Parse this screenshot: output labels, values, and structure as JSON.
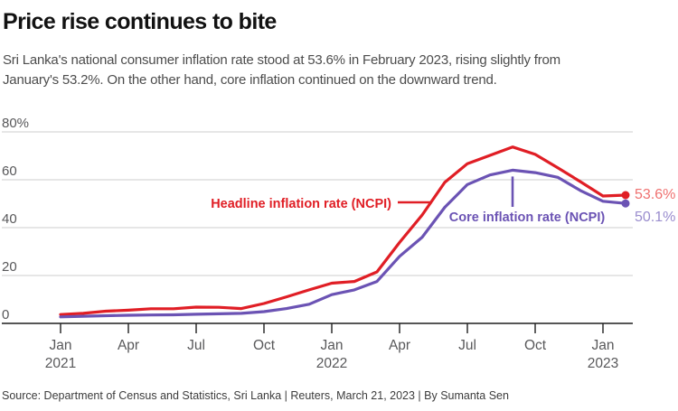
{
  "header": {
    "title": "Price rise continues to bite",
    "subtitle_line1": "Sri Lanka's national consumer inflation rate stood at 53.6% in February 2023, rising slightly from",
    "subtitle_line2": "January's 53.2%. On the other hand, core inflation continued on the downward trend."
  },
  "source": "Source: Department of Census and Statistics, Sri Lanka | Reuters, March 21, 2023 | By Sumanta Sen",
  "colors": {
    "headline_line": "#e01e25",
    "core_line": "#6b53b4",
    "headline_end_label": "#ef7170",
    "core_end_label": "#9a8dce",
    "gridline": "#cccccc",
    "axis": "#1f1f1f",
    "axis_text": "#58585a"
  },
  "chart_data": {
    "type": "line",
    "title": "Price rise continues to bite",
    "x": [
      "Jan 2021",
      "Feb 2021",
      "Mar 2021",
      "Apr 2021",
      "May 2021",
      "Jun 2021",
      "Jul 2021",
      "Aug 2021",
      "Sep 2021",
      "Oct 2021",
      "Nov 2021",
      "Dec 2021",
      "Jan 2022",
      "Feb 2022",
      "Mar 2022",
      "Apr 2022",
      "May 2022",
      "Jun 2022",
      "Jul 2022",
      "Aug 2022",
      "Sep 2022",
      "Oct 2022",
      "Nov 2022",
      "Dec 2022",
      "Jan 2023",
      "Feb 2023"
    ],
    "series": [
      {
        "name": "Headline inflation rate (NCPI)",
        "color_key": "headline_line",
        "end_label": "53.6%",
        "end_label_color_key": "headline_end_label",
        "values": [
          3.7,
          4.2,
          5.1,
          5.5,
          6.1,
          6.1,
          6.8,
          6.7,
          6.2,
          8.3,
          11.1,
          14.0,
          16.8,
          17.5,
          21.5,
          33.8,
          45.3,
          58.9,
          66.7,
          70.2,
          73.7,
          70.6,
          65.0,
          59.2,
          53.2,
          53.6
        ]
      },
      {
        "name": "Core inflation rate (NCPI)",
        "color_key": "core_line",
        "end_label": "50.1%",
        "end_label_color_key": "core_end_label",
        "values": [
          2.7,
          3.0,
          3.2,
          3.4,
          3.5,
          3.6,
          3.8,
          4.0,
          4.2,
          4.9,
          6.2,
          8.0,
          12.0,
          14.0,
          17.5,
          28.0,
          36.0,
          48.5,
          58.0,
          62.0,
          64.0,
          63.0,
          61.0,
          55.5,
          51.0,
          50.1
        ]
      }
    ],
    "ylim": [
      0,
      80
    ],
    "grid": "horizontal",
    "legend_position": "annotated-on-chart",
    "y_ticks": [
      {
        "label": "80%",
        "v": 80
      },
      {
        "label": "60",
        "v": 60
      },
      {
        "label": "40",
        "v": 40
      },
      {
        "label": "20",
        "v": 20
      },
      {
        "label": "0",
        "v": 0
      }
    ],
    "x_ticks": [
      {
        "m": "Jan",
        "yr": "2021",
        "i": 0
      },
      {
        "m": "Apr",
        "i": 3
      },
      {
        "m": "Jul",
        "i": 6
      },
      {
        "m": "Oct",
        "i": 9
      },
      {
        "m": "Jan",
        "yr": "2022",
        "i": 12
      },
      {
        "m": "Apr",
        "i": 15
      },
      {
        "m": "Jul",
        "i": 18
      },
      {
        "m": "Oct",
        "i": 21
      },
      {
        "m": "Jan",
        "yr": "2023",
        "i": 24
      }
    ]
  }
}
